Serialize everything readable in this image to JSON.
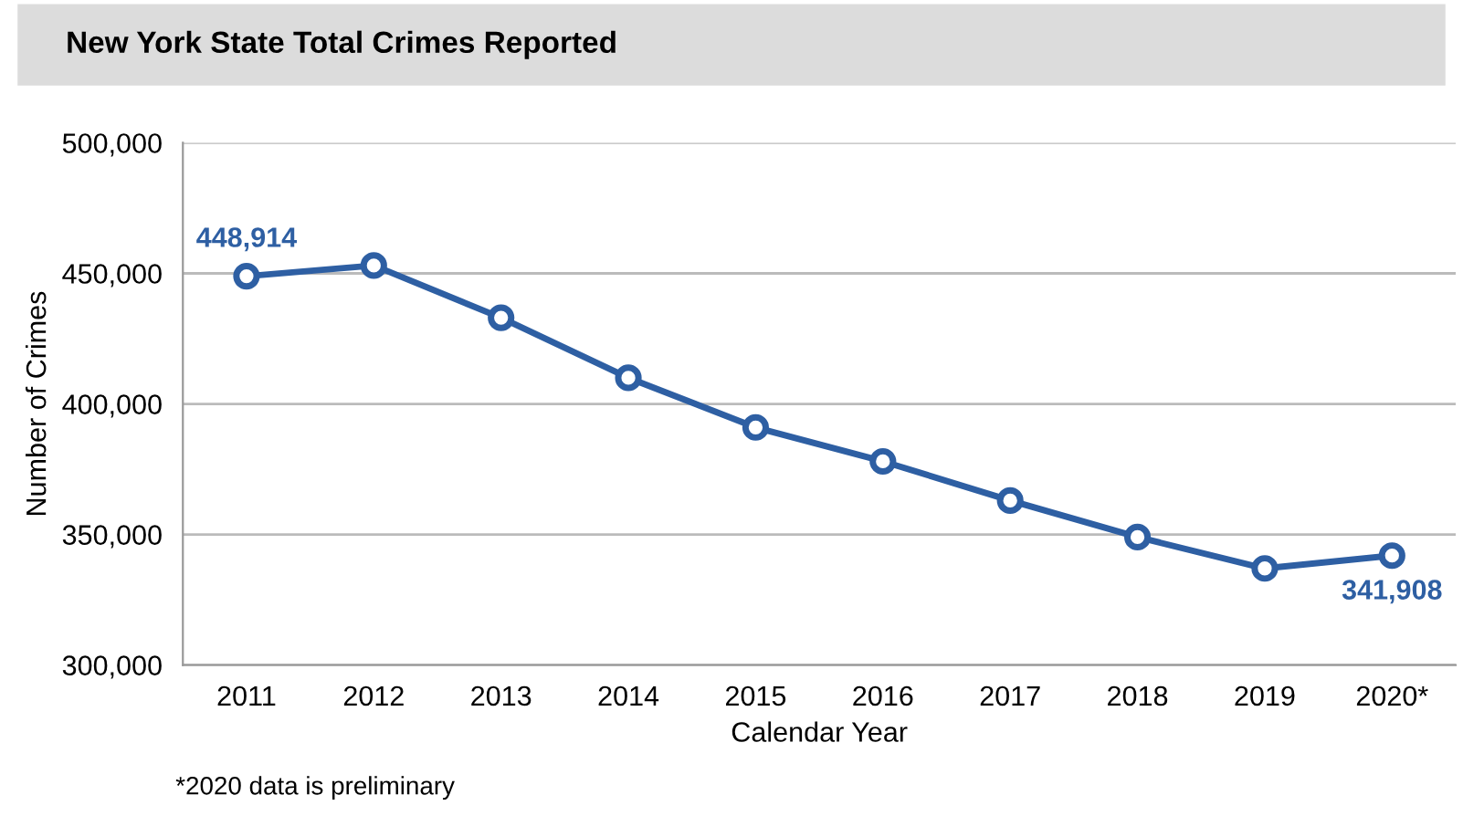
{
  "chart_data": {
    "type": "line",
    "title": "New York State Total Crimes Reported",
    "xlabel": "Calendar Year",
    "ylabel": "Number of Crimes",
    "categories": [
      "2011",
      "2012",
      "2013",
      "2014",
      "2015",
      "2016",
      "2017",
      "2018",
      "2019",
      "2020*"
    ],
    "series": [
      {
        "color": "#2e5fa3",
        "values": [
          448914,
          453000,
          433000,
          410000,
          391000,
          378000,
          363000,
          349000,
          337000,
          341908
        ],
        "value_labels": [
          "448,914",
          null,
          null,
          null,
          null,
          null,
          null,
          null,
          null,
          "341,908"
        ]
      }
    ],
    "ylim": [
      300000,
      500000
    ],
    "yticks": [
      {
        "value": 300000,
        "label": "300,000"
      },
      {
        "value": 350000,
        "label": "350,000"
      },
      {
        "value": 400000,
        "label": "400,000"
      },
      {
        "value": 450000,
        "label": "450,000"
      },
      {
        "value": 500000,
        "label": "500,000"
      }
    ],
    "grid": "y",
    "marker": "circle",
    "line_style": "solid",
    "legend": false,
    "annotations": [
      "*2020 data is preliminary"
    ]
  }
}
